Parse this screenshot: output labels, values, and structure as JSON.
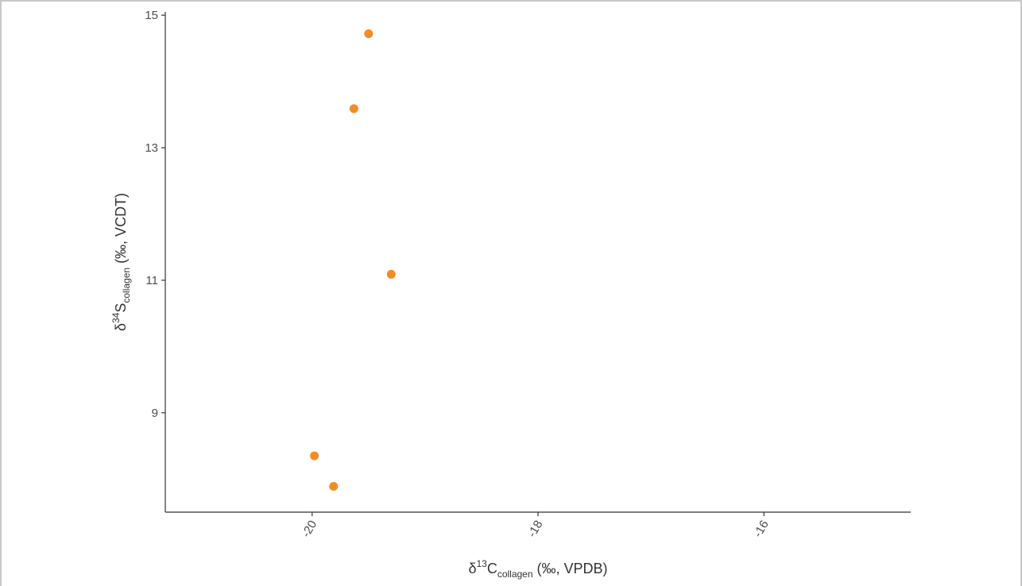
{
  "chart_data": {
    "type": "scatter",
    "xlim": [
      -21.3,
      -14.7
    ],
    "ylim": [
      7.5,
      15.05
    ],
    "x_ticks": [
      -20,
      -18,
      -16
    ],
    "x_tick_labels": [
      "-20",
      "-18",
      "-16"
    ],
    "y_ticks": [
      9,
      11,
      13,
      15
    ],
    "y_tick_labels": [
      "9",
      "11",
      "13",
      "15"
    ],
    "xlabel": {
      "prefix": "δ",
      "sup": "13",
      "element": "C",
      "sub": "collagen",
      "suffix": " (‰, VPDB)"
    },
    "ylabel": {
      "prefix": "δ",
      "sup": "34",
      "element": "S",
      "sub": "collagen",
      "suffix": " (‰, VCDT)"
    },
    "grid": false,
    "legend": "none",
    "marker_color": "#F28C28",
    "series": [
      {
        "x": [
          -19.5,
          -19.63,
          -19.3,
          -19.98,
          -19.81
        ],
        "y": [
          14.72,
          13.59,
          11.09,
          8.35,
          7.89
        ]
      }
    ]
  }
}
